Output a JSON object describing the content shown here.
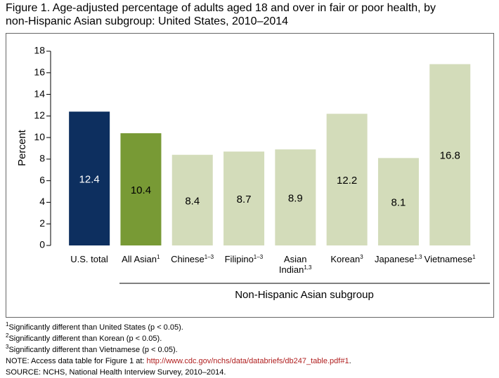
{
  "title": [
    "Figure 1. Age-adjusted percentage of adults aged 18 and over in fair or poor health, by",
    "non-Hispanic Asian subgroup: United States, 2010–2014"
  ],
  "chart_data": {
    "type": "bar",
    "categories": [
      "U.S. total",
      "All Asian",
      "Chinese",
      "Filipino",
      "Asian Indian",
      "Korean",
      "Japanese",
      "Vietnamese"
    ],
    "category_notes": [
      null,
      "1",
      "1–3",
      "1–3",
      "1,3",
      "3",
      "1,3",
      "1"
    ],
    "values": [
      12.4,
      10.4,
      8.4,
      8.7,
      8.9,
      12.2,
      8.1,
      16.8
    ],
    "colors": [
      "#0d2f5f",
      "#789a35",
      "#d3dcba",
      "#d3dcba",
      "#d3dcba",
      "#d3dcba",
      "#d3dcba",
      "#d3dcba"
    ],
    "y_label": "Percent",
    "group_label": "Non-Hispanic Asian subgroup",
    "ylim": [
      0,
      18
    ],
    "yticks": [
      0,
      2,
      4,
      6,
      8,
      10,
      12,
      14,
      16,
      18
    ]
  },
  "footnotes": [
    {
      "marker": "1",
      "text": "Significantly different than United States (p < 0.05)."
    },
    {
      "marker": "2",
      "text": "Significantly different than Korean (p < 0.05)."
    },
    {
      "marker": "3",
      "text": "Significantly different than Vietnamese (p < 0.05)."
    }
  ],
  "note": {
    "text": "NOTE: Access data table for Figure 1 at: ",
    "link": "http://www.cdc.gov/nchs/data/databriefs/db247_table.pdf#1",
    "end": "."
  },
  "source": "SOURCE: NCHS, National Health Interview Survey, 2010–2014."
}
